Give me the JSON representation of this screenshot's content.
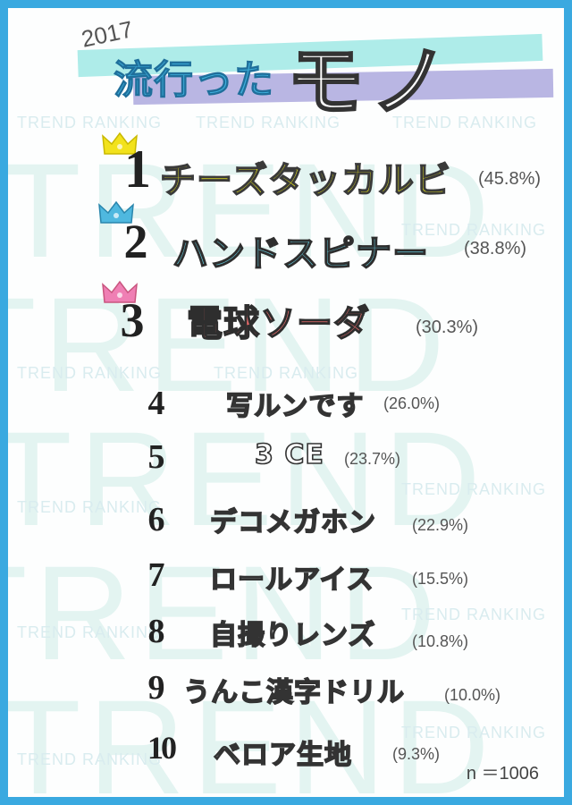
{
  "header": {
    "year": "2017",
    "title_main": "流行った",
    "title_big": "モノ"
  },
  "watermark": {
    "big_word": "TREND",
    "small_phrase": "TREND RANKING"
  },
  "colors": {
    "frame": "#3aa9e0",
    "rank1_text": "#f2ef1c",
    "rank2_text": "#66cfe1",
    "rank3_text": "#ef6d6d",
    "crown1": "#f2e21c",
    "crown2": "#4fb8df",
    "crown3": "#ef7fb4"
  },
  "ranking": [
    {
      "rank": "1",
      "name": "チーズタッカルビ",
      "pct": "(45.8%)",
      "crown": "gold-crown-icon"
    },
    {
      "rank": "2",
      "name": "ハンドスピナー",
      "pct": "(38.8%)",
      "crown": "blue-crown-icon"
    },
    {
      "rank": "3",
      "name": "電球ソーダ",
      "pct": "(30.3%)",
      "crown": "pink-crown-icon"
    },
    {
      "rank": "4",
      "name": "写ルンです",
      "pct": "(26.0%)"
    },
    {
      "rank": "5",
      "name": "3 CE",
      "pct": "(23.7%)"
    },
    {
      "rank": "6",
      "name": "デコメガホン",
      "pct": "(22.9%)"
    },
    {
      "rank": "7",
      "name": "ロールアイス",
      "pct": "(15.5%)"
    },
    {
      "rank": "8",
      "name": "自撮りレンズ",
      "pct": "(10.8%)"
    },
    {
      "rank": "9",
      "name": "うんこ漢字ドリル",
      "pct": "(10.0%)"
    },
    {
      "rank": "10",
      "name": "ベロア生地",
      "pct": "(9.3%)"
    }
  ],
  "sample_size": "n ＝1006"
}
